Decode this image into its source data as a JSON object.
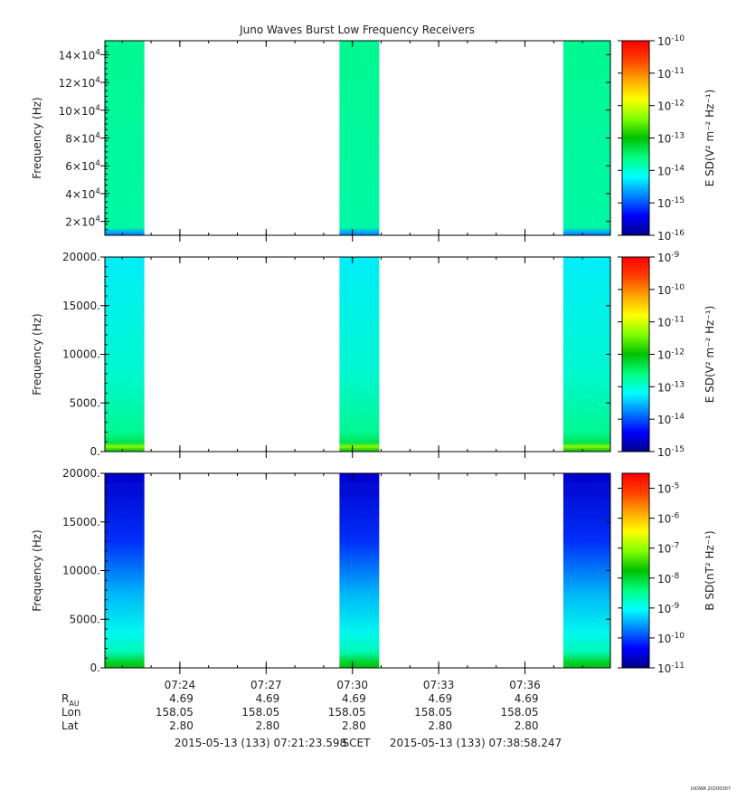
{
  "title": "Juno Waves Burst Low Frequency Receivers",
  "colors": {
    "background": "#ffffff",
    "axis": "#000000",
    "colormap": [
      "#00008b",
      "#0000ff",
      "#0080ff",
      "#00ffff",
      "#00ff80",
      "#00c000",
      "#80ff00",
      "#ffff00",
      "#ffa500",
      "#ff4000",
      "#ff0000"
    ]
  },
  "chart_data": [
    {
      "type": "heatmap",
      "panel": "top",
      "ylabel": "Frequency (Hz)",
      "ylim": [
        10000,
        150000
      ],
      "y_ticks": [
        20000,
        40000,
        60000,
        80000,
        100000,
        120000,
        140000
      ],
      "y_tick_labels": [
        {
          "mant": "2×10",
          "exp": "4"
        },
        {
          "mant": "4×10",
          "exp": "4"
        },
        {
          "mant": "6×10",
          "exp": "4"
        },
        {
          "mant": "8×10",
          "exp": "4"
        },
        {
          "mant": "10×10",
          "exp": "4"
        },
        {
          "mant": "12×10",
          "exp": "4"
        },
        {
          "mant": "14×10",
          "exp": "4"
        }
      ],
      "colorbar_label": "E SD(V² m⁻² Hz⁻¹)",
      "colorbar_ticks": [
        {
          "base": "10",
          "exp": "-10"
        },
        {
          "base": "10",
          "exp": "-11"
        },
        {
          "base": "10",
          "exp": "-12"
        },
        {
          "base": "10",
          "exp": "-13"
        },
        {
          "base": "10",
          "exp": "-14"
        },
        {
          "base": "10",
          "exp": "-15"
        },
        {
          "base": "10",
          "exp": "-16"
        }
      ],
      "colorbar_range_log": [
        -16,
        -10
      ],
      "dominant_log_level": -13.7
    },
    {
      "type": "heatmap",
      "panel": "middle",
      "ylabel": "Frequency (Hz)",
      "ylim": [
        0,
        20000
      ],
      "y_ticks": [
        0,
        5000,
        10000,
        15000,
        20000
      ],
      "y_tick_labels": [
        "0.",
        "5000.",
        "10000.",
        "15000.",
        "20000."
      ],
      "colorbar_label": "E SD(V² m⁻² Hz⁻¹)",
      "colorbar_ticks": [
        {
          "base": "10",
          "exp": "-9"
        },
        {
          "base": "10",
          "exp": "-10"
        },
        {
          "base": "10",
          "exp": "-11"
        },
        {
          "base": "10",
          "exp": "-12"
        },
        {
          "base": "10",
          "exp": "-13"
        },
        {
          "base": "10",
          "exp": "-14"
        },
        {
          "base": "10",
          "exp": "-15"
        }
      ],
      "colorbar_range_log": [
        -15,
        -9
      ],
      "dominant_log_level": -13.0
    },
    {
      "type": "heatmap",
      "panel": "bottom",
      "ylabel": "Frequency (Hz)",
      "ylim": [
        0,
        20000
      ],
      "y_ticks": [
        0,
        5000,
        10000,
        15000,
        20000
      ],
      "y_tick_labels": [
        "0.",
        "5000.",
        "10000.",
        "15000.",
        "20000."
      ],
      "colorbar_label": "B SD(nT² Hz⁻¹)",
      "colorbar_ticks": [
        {
          "base": "10",
          "exp": "-5"
        },
        {
          "base": "10",
          "exp": "-6"
        },
        {
          "base": "10",
          "exp": "-7"
        },
        {
          "base": "10",
          "exp": "-8"
        },
        {
          "base": "10",
          "exp": "-9"
        },
        {
          "base": "10",
          "exp": "-10"
        },
        {
          "base": "10",
          "exp": "-11"
        }
      ],
      "colorbar_range_log": [
        -11,
        -4.5
      ],
      "dominant_log_level": -10.0
    }
  ],
  "time_axis": {
    "start": "07:21:23.598",
    "end": "07:38:58.247",
    "tick_labels": [
      "07:24",
      "07:27",
      "07:30",
      "07:33",
      "07:36"
    ],
    "bursts": [
      {
        "start": "07:21:23",
        "end": "07:22:46"
      },
      {
        "start": "07:29:33",
        "end": "07:30:56"
      },
      {
        "start": "07:37:20",
        "end": "07:38:58"
      }
    ]
  },
  "ephemeris": {
    "rows": [
      {
        "label": "R",
        "sub": "AU",
        "values": [
          "4.69",
          "4.69",
          "4.69",
          "4.69",
          "4.69"
        ]
      },
      {
        "label": "Lon",
        "values": [
          "158.05",
          "158.05",
          "158.05",
          "158.05",
          "158.05"
        ]
      },
      {
        "label": "Lat",
        "values": [
          "2.80",
          "2.80",
          "2.80",
          "2.80",
          "2.80"
        ]
      }
    ]
  },
  "footer": {
    "start_text": "2015-05-13 (133) 07:21:23.598",
    "scet": "SCET",
    "end_text": "2015-05-13 (133) 07:38:58.247"
  },
  "watermark": "UIOWA 20200307"
}
